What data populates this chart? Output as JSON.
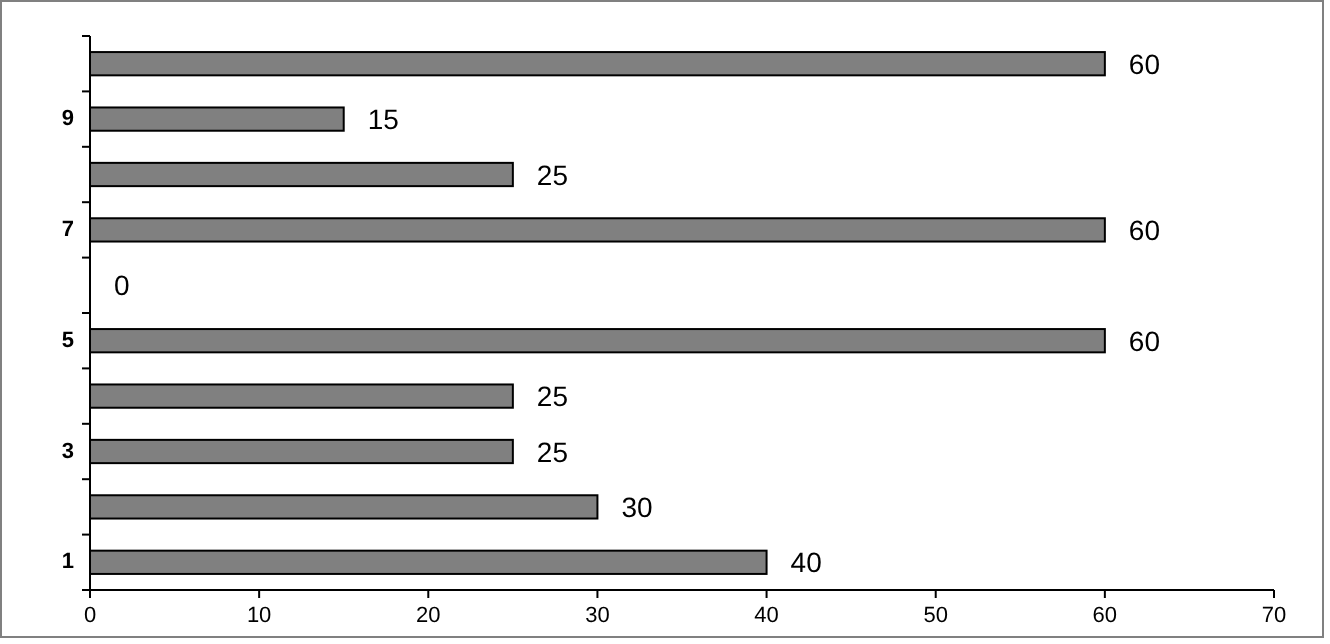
{
  "chart_data": {
    "type": "bar",
    "orientation": "horizontal",
    "categories": [
      null,
      "9",
      null,
      "7",
      null,
      "5",
      null,
      "3",
      null,
      "1"
    ],
    "values": [
      60,
      15,
      25,
      60,
      0,
      60,
      25,
      25,
      30,
      40
    ],
    "color": "#808080",
    "xlim": [
      0,
      70
    ],
    "xticks": [
      0,
      10,
      20,
      30,
      40,
      50,
      60,
      70
    ],
    "data_labels": true
  }
}
